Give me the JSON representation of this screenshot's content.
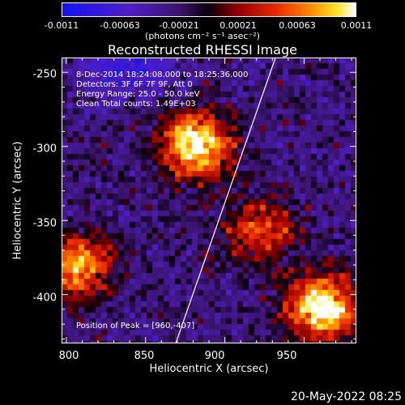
{
  "colorbar": {
    "ticks": [
      "-0.0011",
      "-0.00063",
      "-0.00021",
      "0.00021",
      "0.00063",
      "0.0011"
    ],
    "units": "(photons cm⁻² s⁻¹ asec⁻²)"
  },
  "title": "Reconstructed RHESSI Image",
  "info": {
    "time": "8-Dec-2014 18:24:08.000 to 18:25:36.000",
    "detectors": "Detectors: 3F 6F 7F 9F, Att 0",
    "energy": "Energy Range: 25.0 - 50.0 keV",
    "clean": "Clean     Total counts: 1.49E+03"
  },
  "peak": "Position of Peak = [960,-407]",
  "date": "20-May-2022 08:25",
  "chart_data": {
    "type": "heatmap",
    "title": "Reconstructed RHESSI Image",
    "xlabel": "Heliocentric X (arcsec)",
    "ylabel": "Heliocentric Y (arcsec)",
    "xlim": [
      797,
      983
    ],
    "ylim": [
      -433,
      -240
    ],
    "xticks": [
      "800",
      "850",
      "900",
      "950"
    ],
    "yticks": [
      "-250",
      "-300",
      "-350",
      "-400"
    ],
    "xtick_values": [
      800,
      850,
      900,
      950
    ],
    "ytick_values": [
      -250,
      -300,
      -350,
      -400
    ],
    "color_range": [
      -0.0011,
      0.0011
    ],
    "colormap": "blue-purple-black-red-yellow-white",
    "limb_line": [
      [
        869,
        -433
      ],
      [
        932,
        -240
      ]
    ],
    "peak": [
      960,
      -407
    ],
    "sources": [
      {
        "x": 880,
        "y": -297,
        "intensity": 1.0
      },
      {
        "x": 805,
        "y": -380,
        "intensity": 0.75
      },
      {
        "x": 960,
        "y": -407,
        "intensity": 1.0
      },
      {
        "x": 920,
        "y": -355,
        "intensity": 0.55
      }
    ]
  }
}
